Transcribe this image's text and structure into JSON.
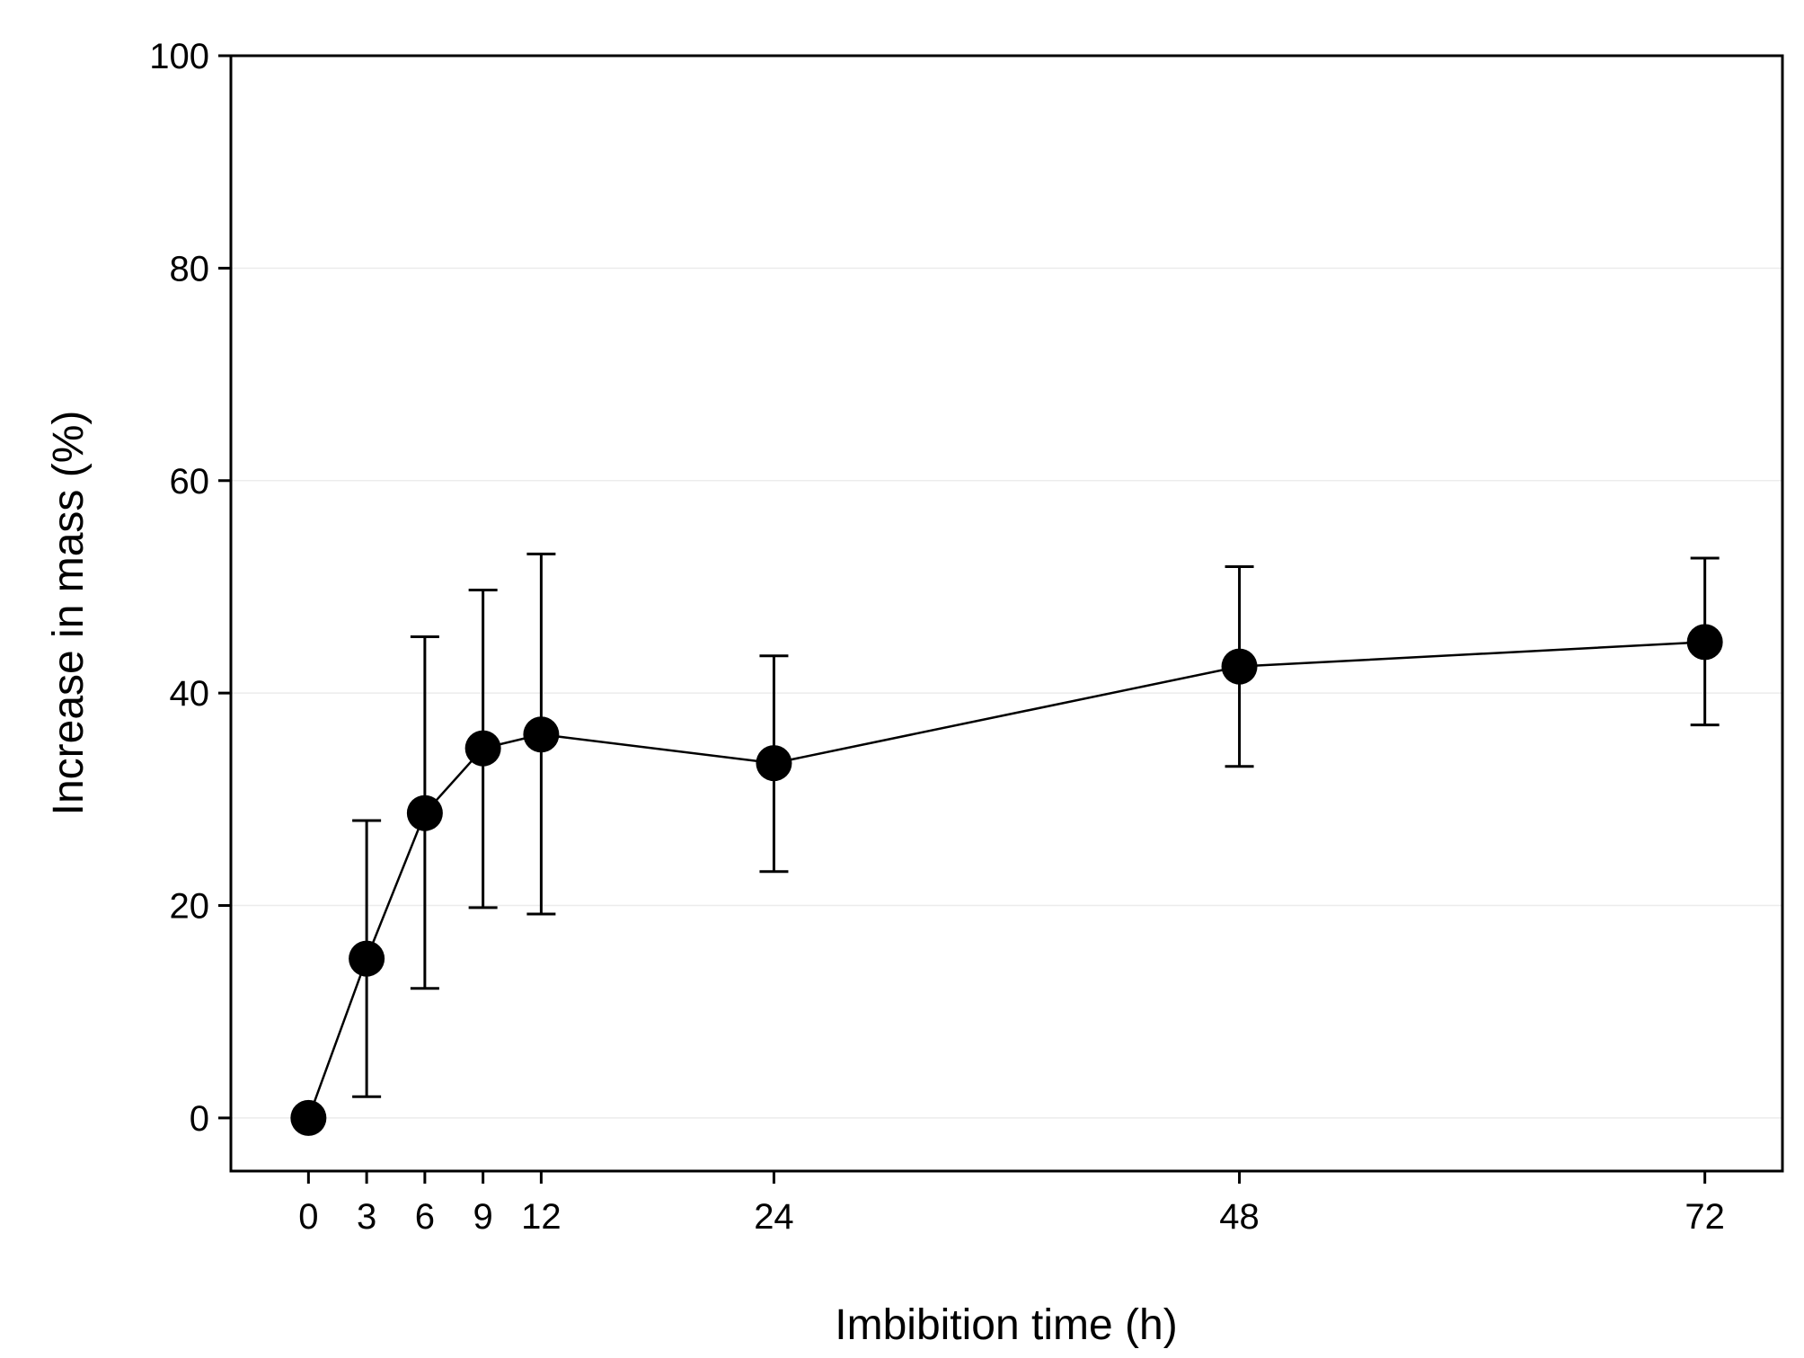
{
  "chart_data": {
    "type": "line",
    "title": "",
    "xlabel": "Imbibition time (h)",
    "ylabel": "Increase in mass (%)",
    "xlim": [
      -4,
      76
    ],
    "ylim": [
      -5,
      100
    ],
    "x_ticks": [
      0,
      3,
      6,
      9,
      12,
      24,
      48,
      72
    ],
    "y_ticks": [
      0,
      20,
      40,
      60,
      80,
      100
    ],
    "grid": "horizontal, light",
    "legend": "none",
    "series": [
      {
        "name": "Increase in mass",
        "marker": "filled-circle",
        "color": "#000000",
        "points": [
          {
            "x": 0,
            "y": 0,
            "err_low": 0,
            "err_high": 0
          },
          {
            "x": 3,
            "y": 15.0,
            "err_low": 2.0,
            "err_high": 28.0
          },
          {
            "x": 6,
            "y": 28.7,
            "err_low": 12.2,
            "err_high": 45.3
          },
          {
            "x": 9,
            "y": 34.8,
            "err_low": 19.8,
            "err_high": 49.7
          },
          {
            "x": 12,
            "y": 36.1,
            "err_low": 19.2,
            "err_high": 53.1
          },
          {
            "x": 24,
            "y": 33.4,
            "err_low": 23.2,
            "err_high": 43.5
          },
          {
            "x": 48,
            "y": 42.5,
            "err_low": 33.1,
            "err_high": 51.9
          },
          {
            "x": 72,
            "y": 44.8,
            "err_low": 37.0,
            "err_high": 52.7
          }
        ]
      }
    ]
  }
}
